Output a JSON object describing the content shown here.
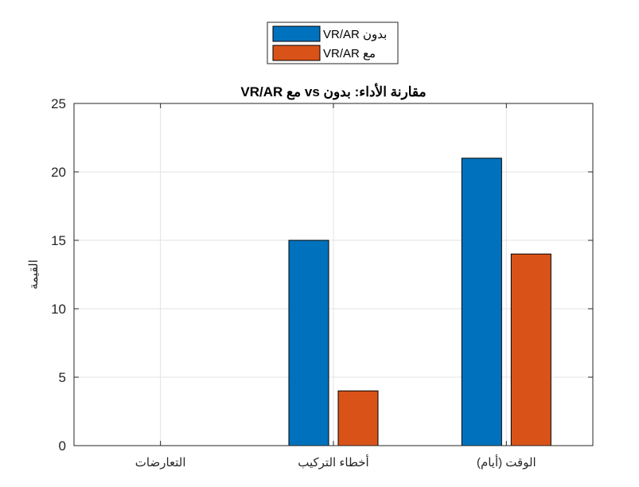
{
  "chart_data": {
    "type": "bar",
    "title": "مقارنة الأداء: بدون vs مع VR/AR",
    "xlabel": "",
    "ylabel": "القيمة",
    "categories": [
      "التعارضات",
      "أخطاء التركيب",
      "الوقت (أيام)"
    ],
    "series": [
      {
        "name": "بدون VR/AR",
        "values": [
          0,
          15,
          21
        ],
        "color": "#0072BD"
      },
      {
        "name": "مع VR/AR",
        "values": [
          0,
          4,
          14
        ],
        "color": "#D95319"
      }
    ],
    "ylim": [
      0,
      25
    ],
    "yticks": [
      "0",
      "5",
      "10",
      "15",
      "20",
      "25"
    ],
    "grid": true,
    "legend_position": "top-center, outside"
  }
}
